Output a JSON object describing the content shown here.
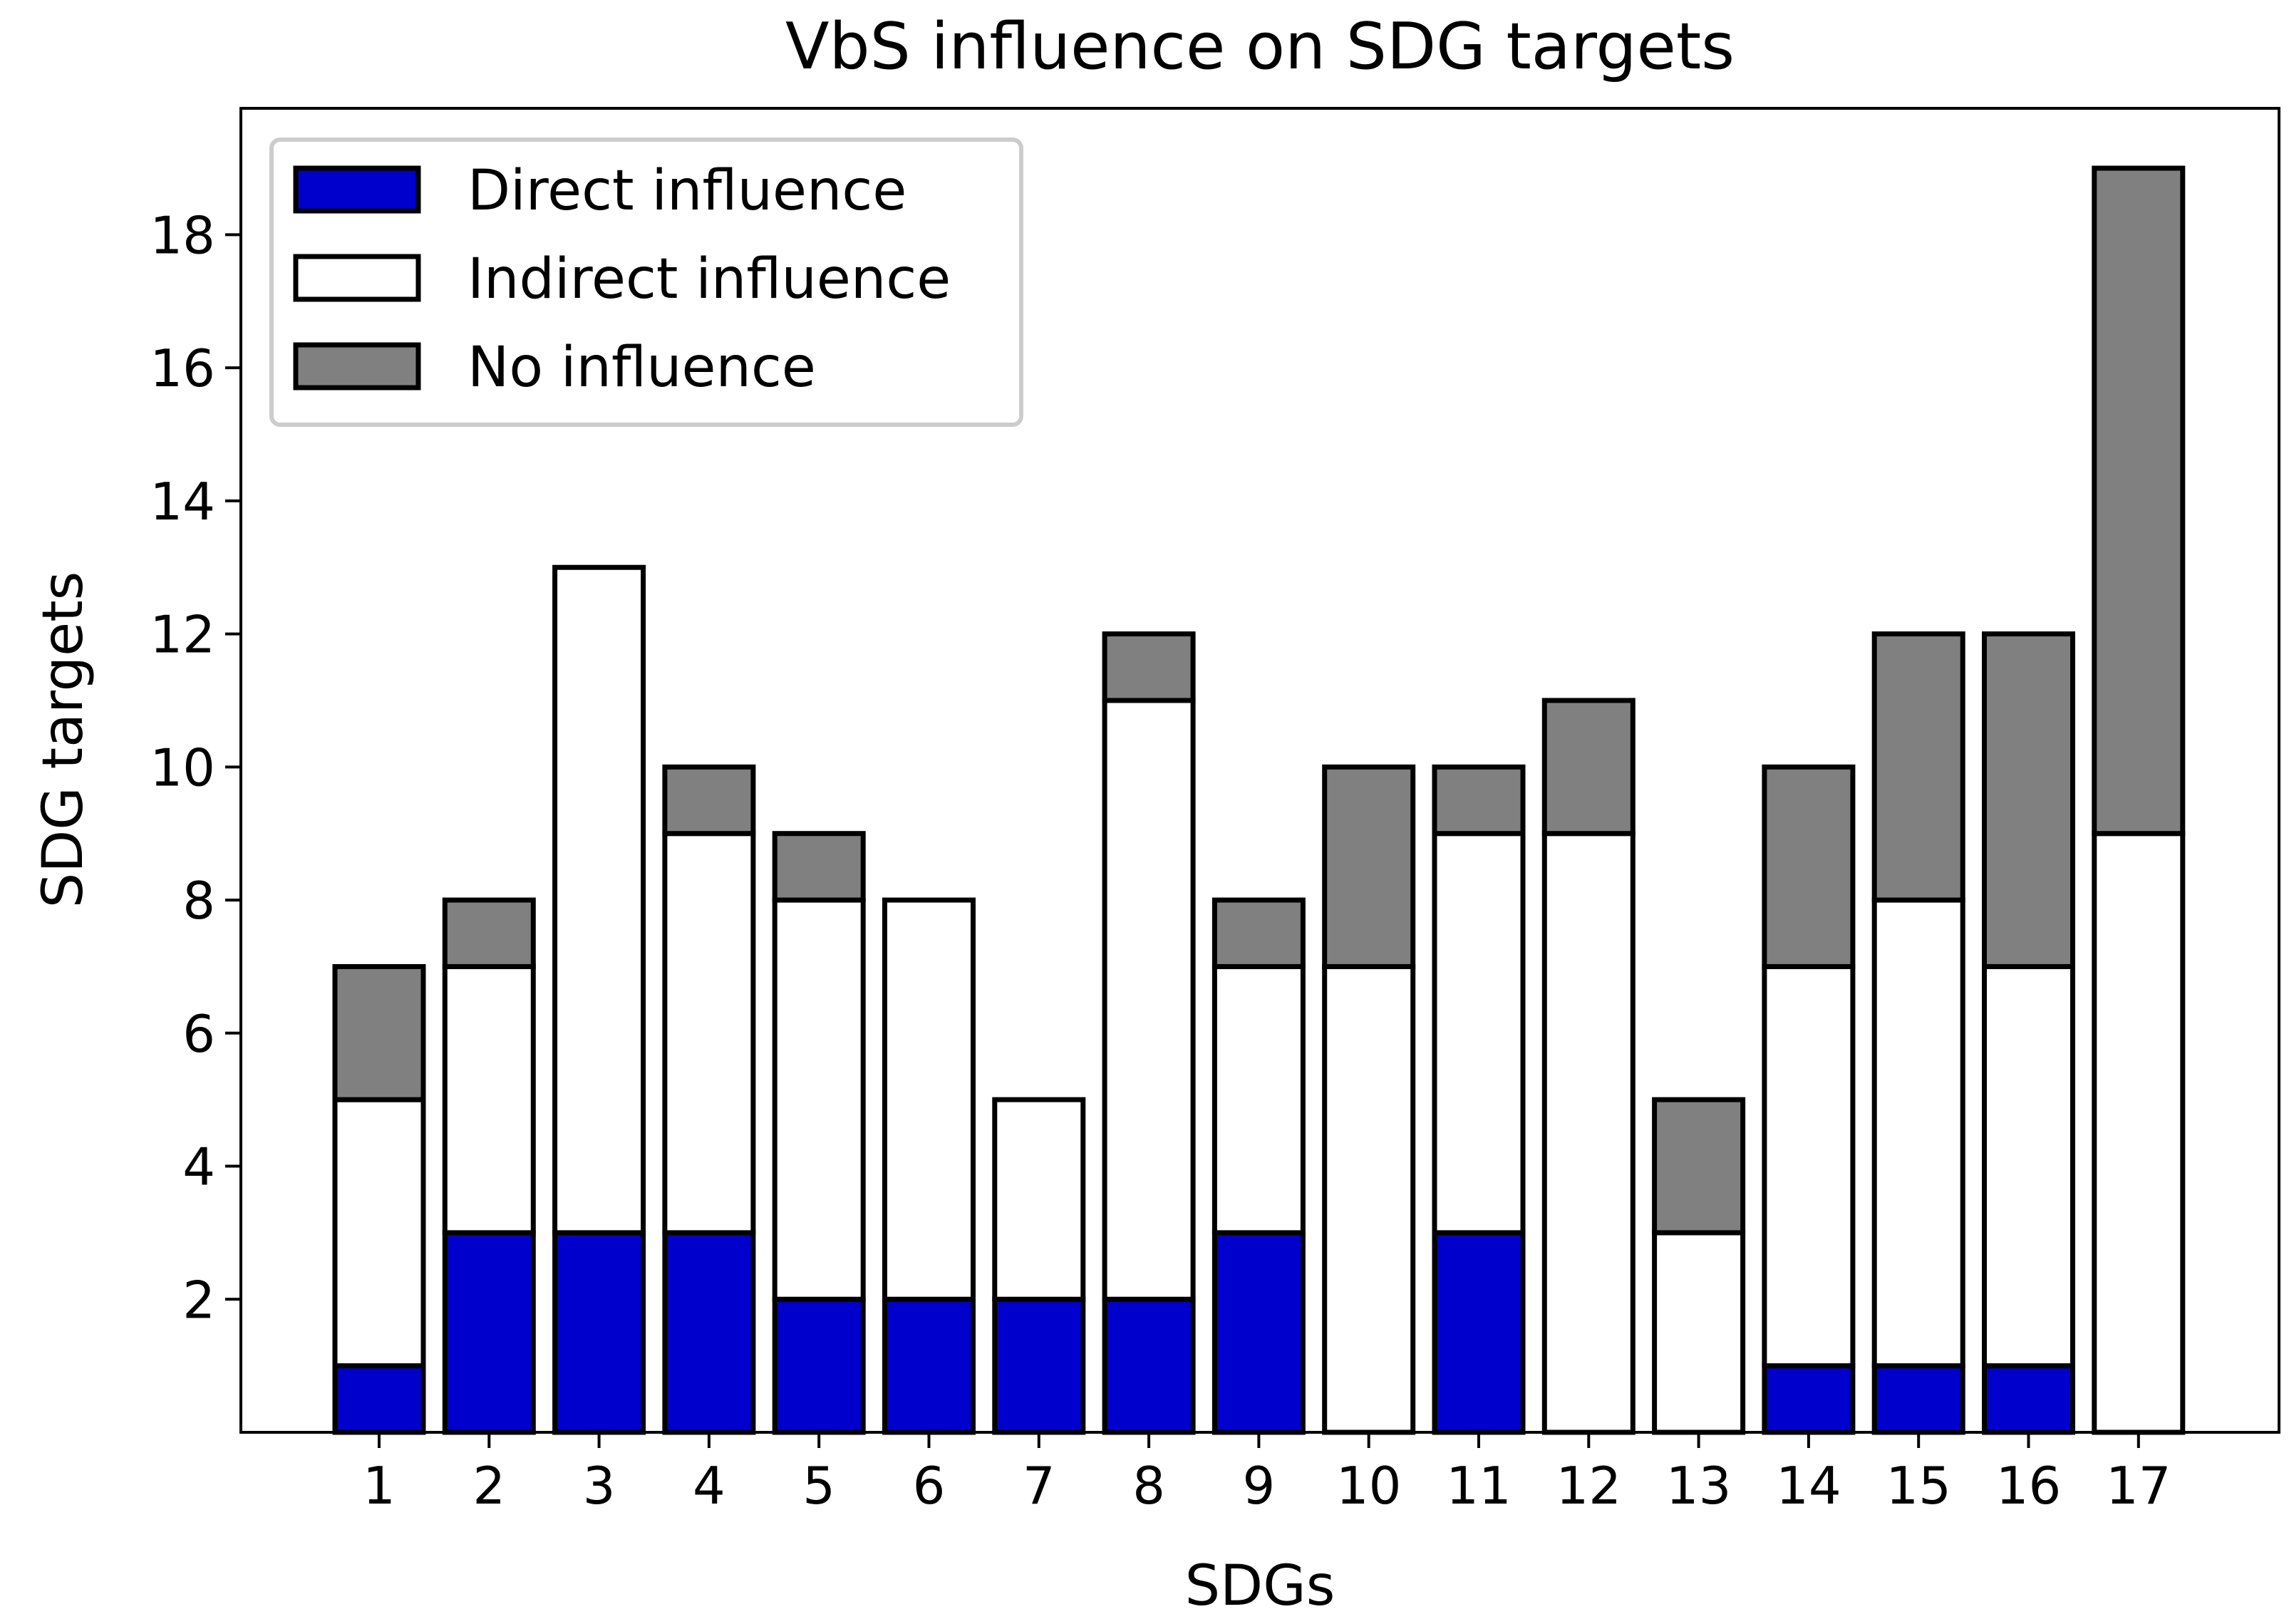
{
  "chart_data": {
    "type": "bar",
    "stacked": true,
    "title": "VbS influence on SDG targets",
    "xlabel": "SDGs",
    "ylabel": "SDG targets",
    "categories": [
      "1",
      "2",
      "3",
      "4",
      "5",
      "6",
      "7",
      "8",
      "9",
      "10",
      "11",
      "12",
      "13",
      "14",
      "15",
      "16",
      "17"
    ],
    "ylim": [
      0,
      19.9
    ],
    "yticks": [
      2,
      4,
      6,
      8,
      10,
      12,
      14,
      16,
      18
    ],
    "legend_position": "upper-left",
    "series": [
      {
        "name": "Direct influence",
        "color": "#0000cc",
        "values": [
          1,
          3,
          3,
          3,
          2,
          2,
          2,
          2,
          3,
          0,
          3,
          0,
          0,
          1,
          1,
          1,
          0
        ]
      },
      {
        "name": "Indirect influence",
        "color": "#ffffff",
        "values": [
          4,
          4,
          10,
          6,
          6,
          6,
          3,
          9,
          4,
          7,
          6,
          9,
          3,
          6,
          7,
          6,
          9
        ]
      },
      {
        "name": "No influence",
        "color": "#808080",
        "values": [
          2,
          1,
          0,
          1,
          1,
          0,
          0,
          1,
          1,
          3,
          1,
          2,
          2,
          3,
          4,
          5,
          10
        ]
      }
    ]
  }
}
